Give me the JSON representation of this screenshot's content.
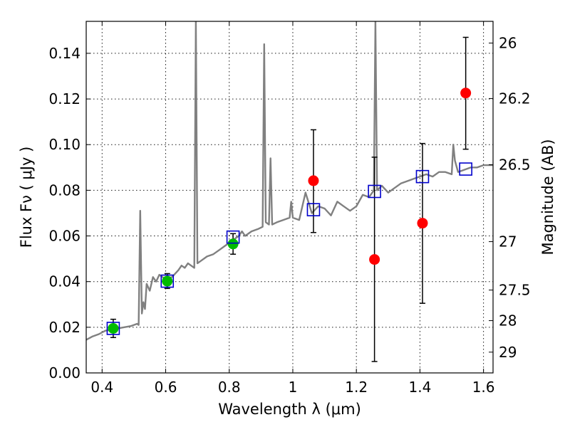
{
  "chart_data": {
    "type": "scatter",
    "xlabel": "Wavelength  λ (μm)",
    "ylabel": "Flux  Fν  ( μJy )",
    "y2label": "Magnitude (AB)",
    "xlim": [
      0.35,
      1.63
    ],
    "ylim": [
      0.0,
      0.154
    ],
    "grid": true,
    "x_ticks": [
      0.4,
      0.6,
      0.8,
      1.0,
      1.2,
      1.4,
      1.6
    ],
    "x_tick_labels": [
      "0.4",
      "0.6",
      "0.8",
      "1",
      "1.2",
      "1.4",
      "1.6"
    ],
    "y_ticks": [
      0.0,
      0.02,
      0.04,
      0.06,
      0.08,
      0.1,
      0.12,
      0.14
    ],
    "y_tick_labels": [
      "0.00",
      "0.02",
      "0.04",
      "0.06",
      "0.08",
      "0.10",
      "0.12",
      "0.14"
    ],
    "y2_ticks": [
      {
        "label": "26",
        "flux": 0.1445
      },
      {
        "label": "26.2",
        "flux": 0.1202
      },
      {
        "label": "26.5",
        "flux": 0.0912
      },
      {
        "label": "27",
        "flux": 0.0575
      },
      {
        "label": "27.5",
        "flux": 0.0363
      },
      {
        "label": "28",
        "flux": 0.0229
      },
      {
        "label": "29",
        "flux": 0.0091
      }
    ],
    "series": [
      {
        "kind": "line",
        "color": "#808080",
        "x": [
          0.35,
          0.37,
          0.39,
          0.41,
          0.43,
          0.45,
          0.47,
          0.49,
          0.51,
          0.515,
          0.52,
          0.525,
          0.53,
          0.535,
          0.54,
          0.55,
          0.56,
          0.57,
          0.58,
          0.6,
          0.62,
          0.64,
          0.65,
          0.66,
          0.67,
          0.68,
          0.69,
          0.695,
          0.7,
          0.71,
          0.73,
          0.75,
          0.77,
          0.79,
          0.81,
          0.83,
          0.84,
          0.85,
          0.87,
          0.89,
          0.905,
          0.91,
          0.915,
          0.925,
          0.93,
          0.935,
          0.95,
          0.97,
          0.99,
          0.995,
          1.0,
          1.02,
          1.04,
          1.06,
          1.08,
          1.1,
          1.12,
          1.14,
          1.16,
          1.18,
          1.2,
          1.22,
          1.24,
          1.255,
          1.26,
          1.265,
          1.28,
          1.3,
          1.32,
          1.34,
          1.36,
          1.38,
          1.4,
          1.42,
          1.44,
          1.46,
          1.48,
          1.5,
          1.505,
          1.51,
          1.52,
          1.54,
          1.56,
          1.58,
          1.6,
          1.62,
          1.63
        ],
        "values": [
          0.0145,
          0.016,
          0.017,
          0.0185,
          0.019,
          0.0195,
          0.02,
          0.0205,
          0.0215,
          0.021,
          0.071,
          0.026,
          0.031,
          0.028,
          0.039,
          0.036,
          0.042,
          0.04,
          0.043,
          0.041,
          0.042,
          0.045,
          0.047,
          0.046,
          0.048,
          0.047,
          0.046,
          0.154,
          0.048,
          0.049,
          0.051,
          0.052,
          0.054,
          0.056,
          0.058,
          0.06,
          0.062,
          0.06,
          0.062,
          0.063,
          0.064,
          0.144,
          0.066,
          0.065,
          0.094,
          0.065,
          0.066,
          0.067,
          0.068,
          0.075,
          0.068,
          0.067,
          0.079,
          0.07,
          0.073,
          0.072,
          0.069,
          0.075,
          0.073,
          0.071,
          0.073,
          0.078,
          0.077,
          0.08,
          0.154,
          0.08,
          0.082,
          0.079,
          0.081,
          0.083,
          0.084,
          0.085,
          0.086,
          0.087,
          0.086,
          0.088,
          0.088,
          0.087,
          0.1,
          0.093,
          0.088,
          0.089,
          0.09,
          0.09,
          0.091,
          0.091,
          0.091
        ]
      },
      {
        "kind": "points",
        "marker": "circle",
        "color": "#00bb00",
        "x": [
          0.435,
          0.605,
          0.812
        ],
        "values": [
          0.0195,
          0.0402,
          0.0565
        ],
        "yerr_low": [
          0.0155,
          0.037,
          0.052
        ],
        "yerr_high": [
          0.0235,
          0.0435,
          0.061
        ]
      },
      {
        "kind": "points",
        "marker": "circle",
        "color": "#ff0000",
        "x": [
          1.065,
          1.257,
          1.408,
          1.544
        ],
        "values": [
          0.0842,
          0.0497,
          0.0656,
          0.1226
        ],
        "yerr_low": [
          0.0615,
          0.005,
          0.0305,
          0.098
        ],
        "yerr_high": [
          0.1065,
          0.0945,
          0.1005,
          0.147
        ]
      },
      {
        "kind": "points",
        "marker": "square",
        "color": "#0000cc",
        "x": [
          0.435,
          0.605,
          0.812,
          1.065,
          1.257,
          1.408,
          1.544
        ],
        "values": [
          0.0195,
          0.0402,
          0.0595,
          0.0715,
          0.0795,
          0.086,
          0.0893
        ]
      }
    ]
  }
}
